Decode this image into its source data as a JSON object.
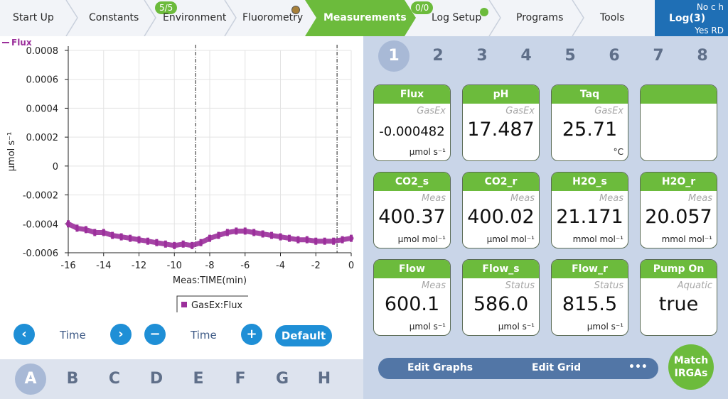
{
  "nav": {
    "tabs": [
      {
        "label": "Start Up"
      },
      {
        "label": "Constants"
      },
      {
        "label": "Environment",
        "badge": "5/5"
      },
      {
        "label": "Fluorometry",
        "dot_color": "#a8803a"
      },
      {
        "label": "Measurements",
        "active": true
      },
      {
        "label": "Log Setup",
        "badge": "0/0",
        "dot_color": "#6cbb3c"
      },
      {
        "label": "Programs"
      },
      {
        "label": "Tools"
      }
    ],
    "log": {
      "top": "No c h",
      "label": "Log(3)",
      "bottom": "Yes RD"
    }
  },
  "colors": {
    "accent_green": "#6cbb3c",
    "accent_blue": "#1f8fd6",
    "trace": "#9b2f9b",
    "log_blue": "#1f6fb5"
  },
  "chart_data": {
    "type": "line",
    "series": [
      {
        "name": "Flux",
        "values_desc": "GasEx:Flux"
      }
    ],
    "legend_top": "Flux",
    "legend_bottom": "GasEx:Flux",
    "xlabel": "Meas:TIME(min)",
    "ylabel": "µmol s⁻¹",
    "xlim": [
      -16,
      0
    ],
    "ylim": [
      -0.0006,
      0.0008
    ],
    "x_ticks": [
      "-16",
      "-14",
      "-12",
      "-10",
      "-8",
      "-6",
      "-4",
      "-2",
      "0"
    ],
    "y_ticks": [
      "0.0008",
      "0.0006",
      "0.0004",
      "0.0002",
      "0",
      "-0.0002",
      "-0.0004",
      "-0.0006"
    ],
    "grid": true,
    "vlines": [
      -8.8,
      -0.8
    ],
    "x": [
      -16.0,
      -15.5,
      -15.0,
      -14.5,
      -14.0,
      -13.5,
      -13.0,
      -12.5,
      -12.0,
      -11.5,
      -11.0,
      -10.5,
      -10.0,
      -9.5,
      -9.0,
      -8.5,
      -8.0,
      -7.5,
      -7.0,
      -6.5,
      -6.0,
      -5.5,
      -5.0,
      -4.5,
      -4.0,
      -3.5,
      -3.0,
      -2.5,
      -2.0,
      -1.5,
      -1.0,
      -0.5,
      0.0
    ],
    "y": [
      -0.0004,
      -0.00043,
      -0.00044,
      -0.00046,
      -0.00046,
      -0.00048,
      -0.00049,
      -0.0005,
      -0.00051,
      -0.00052,
      -0.00053,
      -0.00054,
      -0.00055,
      -0.00054,
      -0.00055,
      -0.00053,
      -0.0005,
      -0.00048,
      -0.00046,
      -0.00045,
      -0.00045,
      -0.00046,
      -0.00047,
      -0.00048,
      -0.00049,
      -0.0005,
      -0.00051,
      -0.00051,
      -0.00052,
      -0.00052,
      -0.00052,
      -0.00051,
      -0.0005
    ]
  },
  "controls": {
    "left_label": "Time",
    "right_label": "Time",
    "default_label": "Default"
  },
  "graph_tabs": [
    "A",
    "B",
    "C",
    "D",
    "E",
    "F",
    "G",
    "H"
  ],
  "page_tabs": [
    "1",
    "2",
    "3",
    "4",
    "5",
    "6",
    "7",
    "8"
  ],
  "tiles": [
    {
      "title": "Flux",
      "source": "GasEx",
      "value": "-0.000482",
      "unit": "µmol s⁻¹"
    },
    {
      "title": "pH",
      "source": "GasEx",
      "value": "17.487",
      "unit": ""
    },
    {
      "title": "Taq",
      "source": "GasEx",
      "value": "25.71",
      "unit": "°C"
    },
    {
      "title": "",
      "source": "",
      "value": "",
      "unit": ""
    },
    {
      "title": "CO2_s",
      "source": "Meas",
      "value": "400.37",
      "unit": "µmol mol⁻¹"
    },
    {
      "title": "CO2_r",
      "source": "Meas",
      "value": "400.02",
      "unit": "µmol mol⁻¹"
    },
    {
      "title": "H2O_s",
      "source": "Meas",
      "value": "21.171",
      "unit": "mmol mol⁻¹"
    },
    {
      "title": "H2O_r",
      "source": "Meas",
      "value": "20.057",
      "unit": "mmol mol⁻¹"
    },
    {
      "title": "Flow",
      "source": "Meas",
      "value": "600.1",
      "unit": "µmol s⁻¹"
    },
    {
      "title": "Flow_s",
      "source": "Status",
      "value": "586.0",
      "unit": "µmol s⁻¹"
    },
    {
      "title": "Flow_r",
      "source": "Status",
      "value": "815.5",
      "unit": "µmol s⁻¹"
    },
    {
      "title": "Pump On",
      "source": "Aquatic",
      "value": "true",
      "unit": ""
    }
  ],
  "actions": {
    "edit_graphs": "Edit Graphs",
    "edit_grid": "Edit Grid",
    "more": "•••",
    "match": "Match IRGAs"
  }
}
